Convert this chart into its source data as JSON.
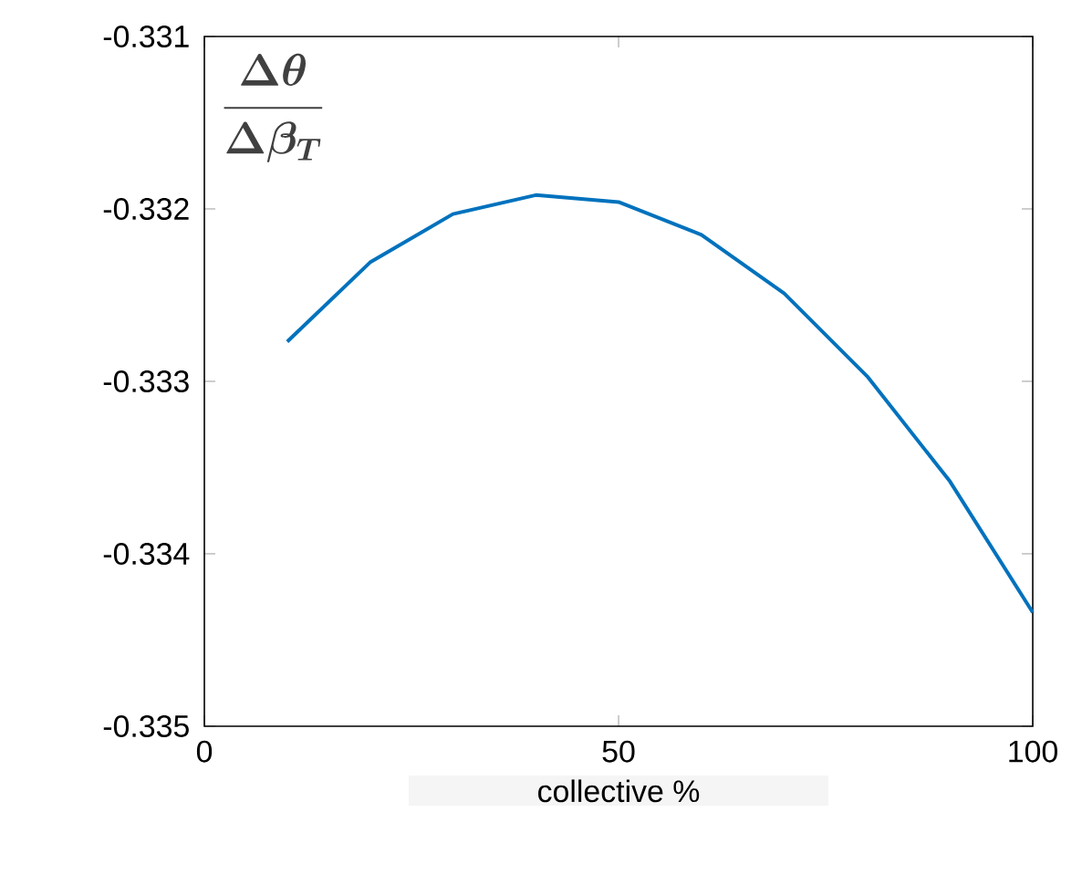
{
  "chart_data": {
    "type": "line",
    "ylabel": "\\boldsymbol{\\frac{\\Delta\\theta}{\\Delta\\beta_T}}",
    "xlabel": "collective %",
    "x": [
      10,
      20,
      30,
      40,
      50,
      60,
      70,
      80,
      90,
      100
    ],
    "series": [
      {
        "color": "#0072bd",
        "values": [
          -0.33277,
          -0.33231,
          -0.33203,
          -0.33192,
          -0.33196,
          -0.33215,
          -0.33249,
          -0.33297,
          -0.33358,
          -0.33434
        ]
      }
    ],
    "xlim": [
      0,
      100
    ],
    "xticks": [
      0,
      50,
      100
    ],
    "ylim": [
      -0.335,
      -0.331
    ],
    "yticks": [
      -0.335,
      -0.334,
      -0.333,
      -0.332,
      -0.331
    ],
    "grid": false,
    "marker": "none",
    "line_style": "solid"
  }
}
